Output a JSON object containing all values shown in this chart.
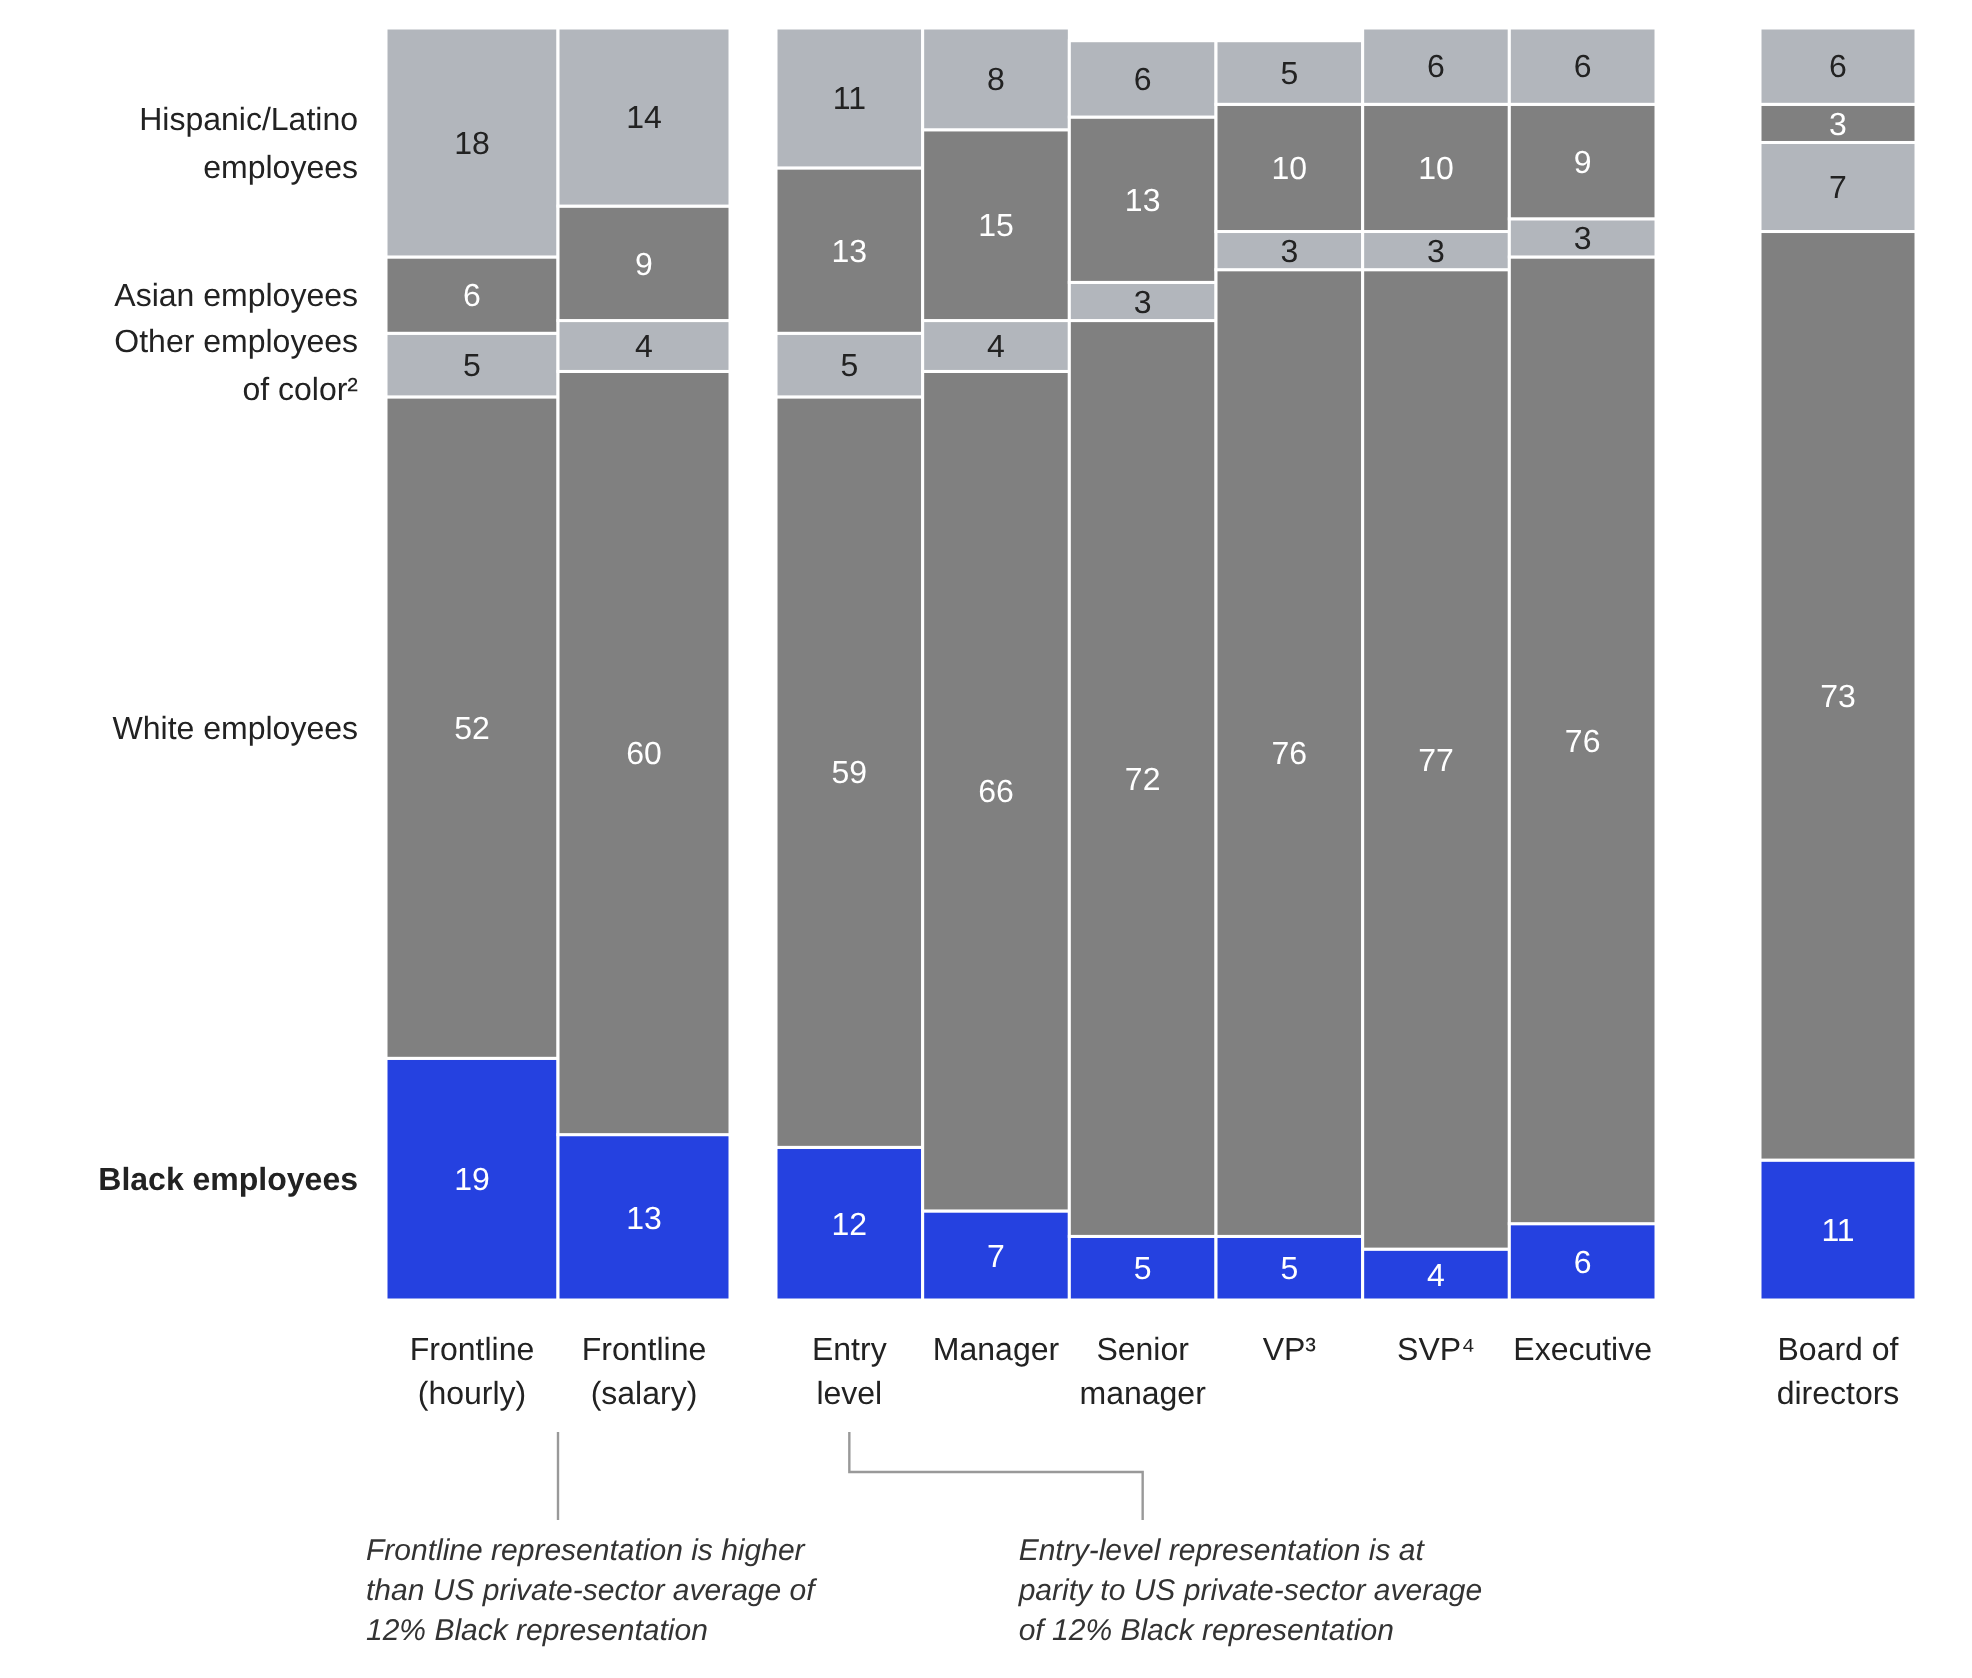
{
  "chart_data": [
    {
      "type": "bar",
      "stacked": true,
      "data_labels": true,
      "categories": [
        "Frontline (hourly)",
        "Frontline (salary)"
      ],
      "series": [
        {
          "name": "Black employees",
          "color": "#2541e0",
          "values": [
            19,
            13
          ]
        },
        {
          "name": "White employees",
          "color": "#808080",
          "values": [
            52,
            60
          ]
        },
        {
          "name": "Other employees of color²",
          "color": "#b2b6bc",
          "values": [
            5,
            4
          ]
        },
        {
          "name": "Asian employees",
          "color": "#808080",
          "values": [
            6,
            9
          ]
        },
        {
          "name": "Hispanic/Latino employees",
          "color": "#b2b6bc",
          "values": [
            18,
            14
          ]
        }
      ],
      "annotations": [
        "Frontline representation is higher than US private-sector average of 12% Black representation"
      ]
    },
    {
      "type": "bar",
      "stacked": true,
      "data_labels": true,
      "categories": [
        "Entry level",
        "Manager",
        "Senior manager",
        "VP³",
        "SVP⁴",
        "Executive"
      ],
      "series": [
        {
          "color": "#2541e0",
          "values": [
            12,
            7,
            5,
            5,
            4,
            6
          ]
        },
        {
          "color": "#808080",
          "values": [
            59,
            66,
            72,
            76,
            77,
            76
          ]
        },
        {
          "color": "#b2b6bc",
          "values": [
            5,
            4,
            3,
            3,
            3,
            3
          ]
        },
        {
          "color": "#808080",
          "values": [
            13,
            15,
            13,
            10,
            10,
            9
          ]
        },
        {
          "color": "#b2b6bc",
          "values": [
            11,
            8,
            6,
            5,
            6,
            6
          ]
        }
      ],
      "annotations": [
        "Entry-level representation is at parity to US private-sector average of 12% Black representation"
      ]
    },
    {
      "type": "bar",
      "stacked": true,
      "data_labels": true,
      "categories": [
        "Board of directors"
      ],
      "series": [
        {
          "color": "#2541e0",
          "values": [
            11
          ]
        },
        {
          "color": "#808080",
          "values": [
            73
          ]
        },
        {
          "color": "#b2b6bc",
          "values": [
            7
          ]
        },
        {
          "color": "#808080",
          "values": [
            3
          ]
        },
        {
          "color": "#b2b6bc",
          "values": [
            6
          ]
        }
      ]
    }
  ]
}
